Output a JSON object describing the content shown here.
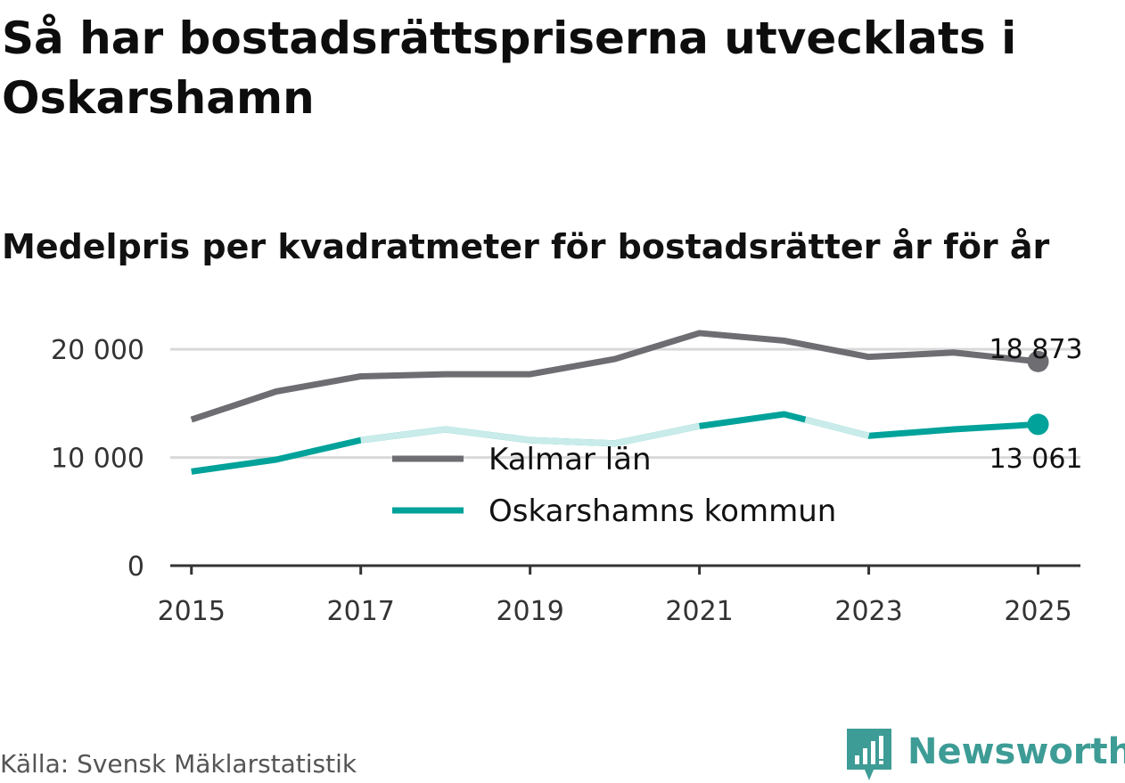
{
  "title": "Så har bostadsrättspriserna utvecklats i Oskarshamn",
  "subtitle": "Medelpris per kvadratmeter för bostadsrätter år för år",
  "source": "Källa: Svensk Mäklarstatistik",
  "brand": {
    "name": "Newsworthy",
    "logo_icon": "newsworthy-bars-logo-icon",
    "color": "#3d9c95"
  },
  "colors": {
    "kalmar": "#6e6d72",
    "oskarshamn": "#00a29a",
    "oskarshamn_light": "#c9ecea",
    "grid": "#d9d9d9",
    "axis": "#333333"
  },
  "chart_data": {
    "type": "line",
    "title": "Medelpris per kvadratmeter för bostadsrätter år för år",
    "xlabel": "",
    "ylabel": "",
    "x": [
      2015,
      2016,
      2017,
      2018,
      2019,
      2020,
      2021,
      2022,
      2023,
      2024,
      2025
    ],
    "xlim": [
      2014.75,
      2025.5
    ],
    "ylim": [
      0,
      21000
    ],
    "x_ticks": [
      "2015",
      "2017",
      "2019",
      "2021",
      "2023",
      "2025"
    ],
    "y_ticks": [
      {
        "value": 0,
        "label": "0"
      },
      {
        "value": 10000,
        "label": "10 000"
      },
      {
        "value": 20000,
        "label": "20 000"
      }
    ],
    "grid": true,
    "legend_position": "center",
    "series": [
      {
        "name": "Kalmar län",
        "values": [
          13500,
          16100,
          17500,
          17700,
          17700,
          19100,
          21500,
          20800,
          19300,
          19700,
          18873
        ],
        "end_label": "18 873"
      },
      {
        "name": "Oskarshamns kommun",
        "values": [
          8700,
          9800,
          11600,
          12600,
          11600,
          11300,
          12900,
          14000,
          12000,
          12600,
          13061
        ],
        "end_label": "13 061"
      }
    ]
  }
}
